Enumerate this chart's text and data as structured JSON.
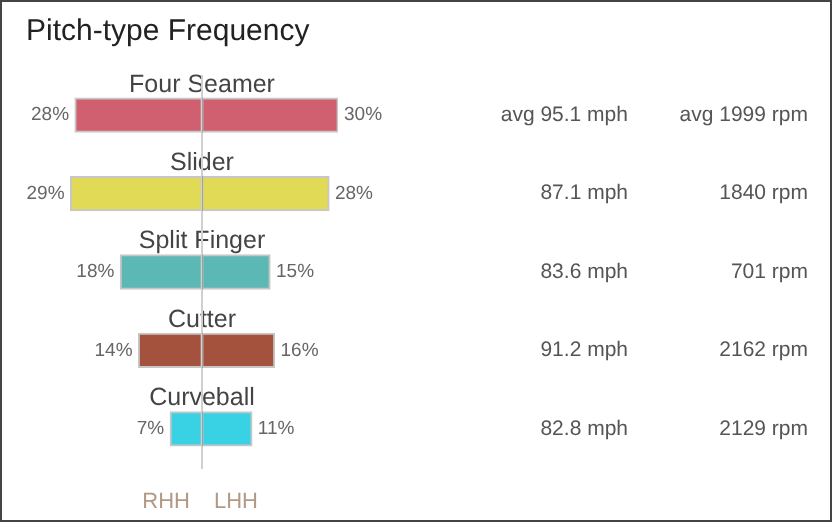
{
  "chart_data": [
    {
      "type": "bar",
      "orientation": "horizontal",
      "title": "Pitch-type Frequency",
      "xlabel": "RHH",
      "categories": [
        "Four Seamer",
        "Slider",
        "Split Finger",
        "Cutter",
        "Curveball"
      ],
      "series": [
        {
          "colors": [
            "#d06070",
            "#e0da56",
            "#5cb8b4",
            "#a4523e",
            "#38d2e4"
          ],
          "values": [
            28,
            29,
            18,
            14,
            7
          ],
          "value_labels": [
            "28%",
            "29%",
            "18%",
            "14%",
            "7%"
          ]
        }
      ],
      "xlim": [
        30,
        0
      ],
      "tick_labels": false,
      "legend": false
    },
    {
      "type": "bar",
      "orientation": "horizontal",
      "xlabel": "LHH",
      "categories": [
        null,
        null,
        null,
        null,
        null
      ],
      "series": [
        {
          "colors": [
            "#d06070",
            "#e0da56",
            "#5cb8b4",
            "#a4523e",
            "#38d2e4"
          ],
          "values": [
            30,
            28,
            15,
            16,
            11
          ],
          "value_labels": [
            "30%",
            "28%",
            "15%",
            "16%",
            "11%"
          ]
        }
      ],
      "xlim": [
        0,
        30
      ],
      "tick_labels": false,
      "legend": false,
      "annotations": [
        "avg 95.1 mph",
        "avg 1999 rpm",
        "87.1 mph",
        "1840 rpm",
        "83.6 mph",
        "701 rpm",
        "91.2 mph",
        "2162 rpm",
        "82.8 mph",
        "2129 rpm"
      ]
    }
  ]
}
